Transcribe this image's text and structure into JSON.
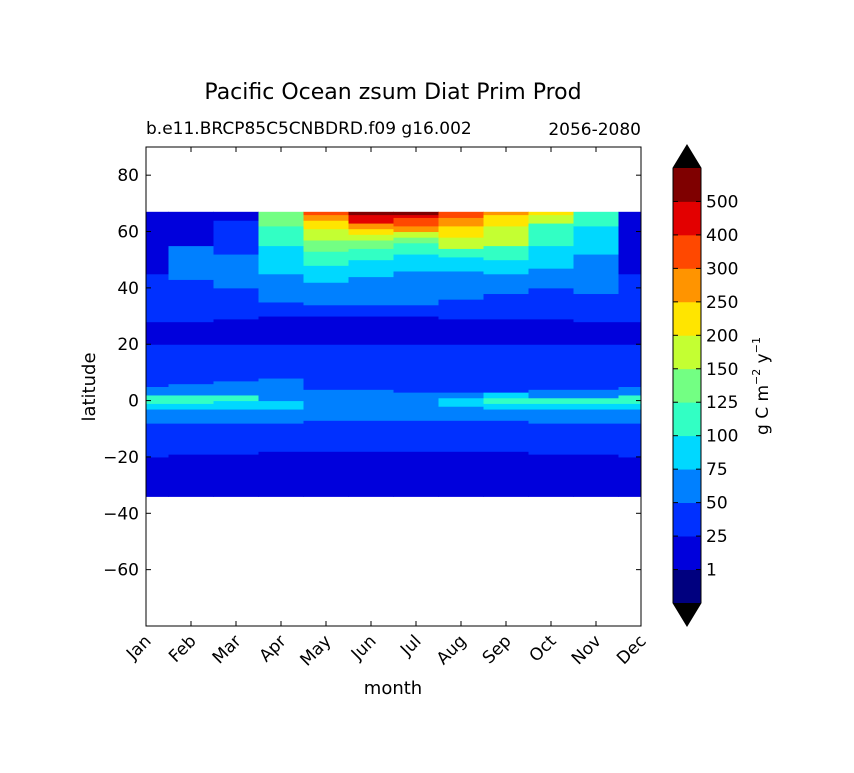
{
  "chart_data": {
    "type": "contourf",
    "title": "Pacific Ocean zsum Diat Prim Prod",
    "subtitle_left": "b.e11.BRCP85C5CNBDRD.f09 g16.002",
    "subtitle_right": "2056-2080",
    "xlabel": "month",
    "ylabel": "latitude",
    "x_ticks": [
      "Jan",
      "Feb",
      "Mar",
      "Apr",
      "May",
      "Jun",
      "Jul",
      "Aug",
      "Sep",
      "Oct",
      "Nov",
      "Dec"
    ],
    "y_ticks": [
      -60,
      -40,
      -20,
      0,
      20,
      40,
      60,
      80
    ],
    "y_tick_labels": [
      "−60",
      "−40",
      "−20",
      "0",
      "20",
      "40",
      "60",
      "80"
    ],
    "ylim": [
      -80,
      90
    ],
    "data_lat_range": [
      -34,
      67
    ],
    "grid": false,
    "colorbar": {
      "label": "g C m⁻² y⁻¹",
      "label_parts": [
        "g C m",
        "−2",
        " y",
        "−1"
      ],
      "levels": [
        1,
        25,
        50,
        75,
        100,
        125,
        150,
        200,
        250,
        300,
        400,
        500
      ],
      "level_labels": [
        "1",
        "25",
        "50",
        "75",
        "100",
        "125",
        "150",
        "200",
        "250",
        "300",
        "400",
        "500"
      ],
      "colors": [
        "#00007f",
        "#0000dc",
        "#0030ff",
        "#0080ff",
        "#00d8ff",
        "#32ffc4",
        "#73ff83",
        "#c4ff32",
        "#ffe500",
        "#ff9400",
        "#ff4800",
        "#e30000",
        "#7f0000"
      ],
      "extend": "both",
      "under_color": "#000000",
      "over_color": "#000000"
    },
    "monthly_bands": [
      {
        "month": "Jan",
        "bands": [
          [
            -34,
            -20,
            1
          ],
          [
            -20,
            -8,
            2
          ],
          [
            -8,
            -3,
            3
          ],
          [
            -3,
            -1,
            4
          ],
          [
            -1,
            2,
            5
          ],
          [
            2,
            5,
            3
          ],
          [
            5,
            20,
            2
          ],
          [
            20,
            28,
            1
          ],
          [
            28,
            45,
            2
          ],
          [
            45,
            67,
            1
          ]
        ]
      },
      {
        "month": "Feb",
        "bands": [
          [
            -34,
            -19,
            1
          ],
          [
            -19,
            -8,
            2
          ],
          [
            -8,
            -3,
            3
          ],
          [
            -3,
            -1,
            4
          ],
          [
            -1,
            2,
            5
          ],
          [
            2,
            6,
            3
          ],
          [
            6,
            20,
            2
          ],
          [
            20,
            28,
            1
          ],
          [
            28,
            43,
            2
          ],
          [
            43,
            55,
            3
          ],
          [
            55,
            67,
            1
          ]
        ]
      },
      {
        "month": "Mar",
        "bands": [
          [
            -34,
            -19,
            1
          ],
          [
            -19,
            -8,
            2
          ],
          [
            -8,
            -3,
            3
          ],
          [
            -3,
            0,
            4
          ],
          [
            0,
            2,
            5
          ],
          [
            2,
            7,
            3
          ],
          [
            7,
            20,
            2
          ],
          [
            20,
            29,
            1
          ],
          [
            29,
            40,
            2
          ],
          [
            40,
            52,
            3
          ],
          [
            52,
            64,
            2
          ],
          [
            64,
            67,
            1
          ]
        ]
      },
      {
        "month": "Apr",
        "bands": [
          [
            -34,
            -18,
            1
          ],
          [
            -18,
            -8,
            2
          ],
          [
            -8,
            -3,
            3
          ],
          [
            -3,
            0,
            4
          ],
          [
            0,
            3,
            3
          ],
          [
            3,
            8,
            3
          ],
          [
            8,
            20,
            2
          ],
          [
            20,
            30,
            1
          ],
          [
            30,
            35,
            2
          ],
          [
            35,
            45,
            3
          ],
          [
            45,
            55,
            4
          ],
          [
            55,
            62,
            5
          ],
          [
            62,
            67,
            6
          ]
        ]
      },
      {
        "month": "May",
        "bands": [
          [
            -34,
            -18,
            1
          ],
          [
            -18,
            -7,
            2
          ],
          [
            -7,
            -3,
            3
          ],
          [
            -3,
            4,
            3
          ],
          [
            4,
            20,
            2
          ],
          [
            20,
            30,
            1
          ],
          [
            30,
            34,
            2
          ],
          [
            34,
            42,
            3
          ],
          [
            42,
            48,
            4
          ],
          [
            48,
            53,
            5
          ],
          [
            53,
            57,
            6
          ],
          [
            57,
            61,
            7
          ],
          [
            61,
            64,
            8
          ],
          [
            64,
            66,
            9
          ],
          [
            66,
            67,
            10
          ]
        ]
      },
      {
        "month": "Jun",
        "bands": [
          [
            -34,
            -18,
            1
          ],
          [
            -18,
            -7,
            2
          ],
          [
            -7,
            -3,
            3
          ],
          [
            -3,
            4,
            3
          ],
          [
            4,
            20,
            2
          ],
          [
            20,
            30,
            1
          ],
          [
            30,
            34,
            2
          ],
          [
            34,
            44,
            3
          ],
          [
            44,
            50,
            4
          ],
          [
            50,
            54,
            5
          ],
          [
            54,
            57,
            6
          ],
          [
            57,
            59,
            7
          ],
          [
            59,
            61,
            8
          ],
          [
            61,
            63,
            9
          ],
          [
            63,
            66,
            11
          ],
          [
            66,
            67,
            12
          ]
        ]
      },
      {
        "month": "Jul",
        "bands": [
          [
            -34,
            -18,
            1
          ],
          [
            -18,
            -7,
            2
          ],
          [
            -7,
            -3,
            3
          ],
          [
            -3,
            3,
            3
          ],
          [
            3,
            20,
            2
          ],
          [
            20,
            30,
            1
          ],
          [
            30,
            34,
            2
          ],
          [
            34,
            46,
            3
          ],
          [
            46,
            52,
            4
          ],
          [
            52,
            56,
            5
          ],
          [
            56,
            58,
            6
          ],
          [
            58,
            60,
            7
          ],
          [
            60,
            62,
            9
          ],
          [
            62,
            65,
            10
          ],
          [
            65,
            66,
            11
          ],
          [
            66,
            67,
            12
          ]
        ]
      },
      {
        "month": "Aug",
        "bands": [
          [
            -34,
            -18,
            1
          ],
          [
            -18,
            -7,
            2
          ],
          [
            -7,
            -2,
            3
          ],
          [
            -2,
            1,
            4
          ],
          [
            1,
            3,
            3
          ],
          [
            3,
            20,
            2
          ],
          [
            20,
            29,
            1
          ],
          [
            29,
            36,
            2
          ],
          [
            36,
            46,
            3
          ],
          [
            46,
            51,
            4
          ],
          [
            51,
            54,
            5
          ],
          [
            54,
            58,
            7
          ],
          [
            58,
            62,
            8
          ],
          [
            62,
            65,
            9
          ],
          [
            65,
            67,
            10
          ]
        ]
      },
      {
        "month": "Sep",
        "bands": [
          [
            -34,
            -18,
            1
          ],
          [
            -18,
            -7,
            2
          ],
          [
            -7,
            -3,
            3
          ],
          [
            -3,
            -1,
            4
          ],
          [
            -1,
            1,
            5
          ],
          [
            1,
            3,
            4
          ],
          [
            3,
            20,
            2
          ],
          [
            20,
            29,
            1
          ],
          [
            29,
            38,
            2
          ],
          [
            38,
            45,
            3
          ],
          [
            45,
            50,
            4
          ],
          [
            50,
            55,
            5
          ],
          [
            55,
            62,
            7
          ],
          [
            62,
            66,
            8
          ],
          [
            66,
            67,
            9
          ]
        ]
      },
      {
        "month": "Oct",
        "bands": [
          [
            -34,
            -19,
            1
          ],
          [
            -19,
            -8,
            2
          ],
          [
            -8,
            -3,
            3
          ],
          [
            -3,
            -1,
            4
          ],
          [
            -1,
            1,
            5
          ],
          [
            1,
            4,
            3
          ],
          [
            4,
            20,
            2
          ],
          [
            20,
            29,
            1
          ],
          [
            29,
            40,
            2
          ],
          [
            40,
            47,
            3
          ],
          [
            47,
            55,
            4
          ],
          [
            55,
            63,
            5
          ],
          [
            63,
            66,
            7
          ],
          [
            66,
            67,
            8
          ]
        ]
      },
      {
        "month": "Nov",
        "bands": [
          [
            -34,
            -19,
            1
          ],
          [
            -19,
            -8,
            2
          ],
          [
            -8,
            -3,
            3
          ],
          [
            -3,
            -1,
            4
          ],
          [
            -1,
            1,
            5
          ],
          [
            1,
            4,
            3
          ],
          [
            4,
            20,
            2
          ],
          [
            20,
            28,
            1
          ],
          [
            28,
            38,
            2
          ],
          [
            38,
            52,
            3
          ],
          [
            52,
            62,
            4
          ],
          [
            62,
            67,
            5
          ]
        ]
      },
      {
        "month": "Dec",
        "bands": [
          [
            -34,
            -20,
            1
          ],
          [
            -20,
            -8,
            2
          ],
          [
            -8,
            -3,
            3
          ],
          [
            -3,
            -1,
            4
          ],
          [
            -1,
            2,
            5
          ],
          [
            2,
            5,
            3
          ],
          [
            5,
            20,
            2
          ],
          [
            20,
            28,
            1
          ],
          [
            28,
            45,
            2
          ],
          [
            45,
            67,
            1
          ]
        ]
      }
    ]
  }
}
